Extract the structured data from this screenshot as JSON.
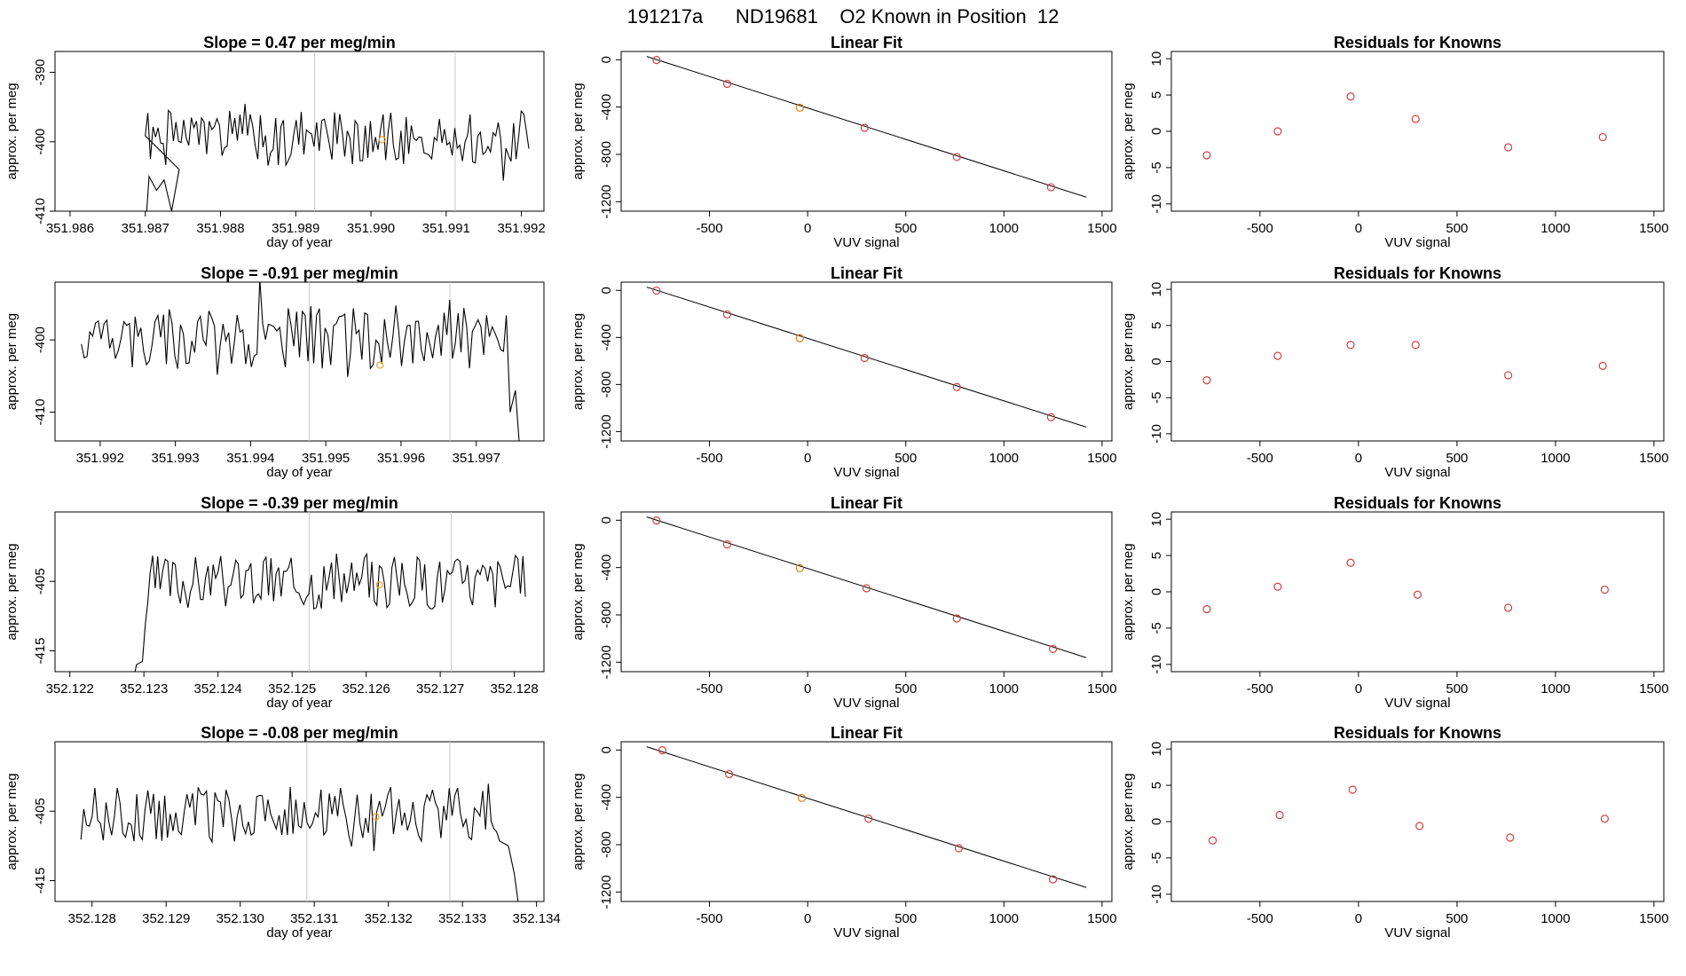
{
  "figure": {
    "title": "191217a      ND19681    O2 Known in Position  12"
  },
  "chart_data": [
    {
      "type": "line",
      "title": "Slope =  0.47  per meg/min",
      "xlabel": "day of year",
      "ylabel": "approx. per meg",
      "xlim": [
        351.9858,
        351.9923
      ],
      "ylim": [
        -410,
        -387
      ],
      "xticks": [
        351.986,
        351.987,
        351.988,
        351.989,
        351.99,
        351.991,
        351.992
      ],
      "xtick_labels": [
        "351.986",
        "351.987",
        "351.988",
        "351.989",
        "351.990",
        "351.991",
        "351.992"
      ],
      "yticks": [
        -410,
        -400,
        -390
      ],
      "ytick_labels": [
        "-410",
        "-400",
        "-390"
      ],
      "series": [
        {
          "x_start": 351.987,
          "x_end": 351.9921,
          "baseline": -399.5,
          "amplitude": 4,
          "seed": 1,
          "lead_in": [
            [
              351.987,
              -413
            ],
            [
              351.98705,
              -405
            ],
            [
              351.98715,
              -407
            ],
            [
              351.98725,
              -405.5
            ],
            [
              351.98735,
              -410
            ],
            [
              351.98745,
              -404
            ]
          ]
        }
      ],
      "vlines": [
        351.98925,
        351.99112
      ],
      "marker": {
        "x": 351.99015,
        "y": -399.7,
        "color": "#f0a030"
      },
      "grid": false
    },
    {
      "type": "scatter",
      "title": "Linear Fit",
      "xlabel": "VUV signal",
      "ylabel": "approx. per meg",
      "xlim": [
        -950,
        1550
      ],
      "ylim": [
        -1280,
        70
      ],
      "xticks": [
        -500,
        0,
        500,
        1000,
        1500
      ],
      "xtick_labels": [
        "-500",
        "0",
        "500",
        "1000",
        "1500"
      ],
      "yticks": [
        -1200,
        -800,
        -400,
        0
      ],
      "ytick_labels": [
        "-1200",
        "-800",
        "-400",
        "0"
      ],
      "fit_line": {
        "x": [
          -820,
          1420
        ],
        "y": [
          28,
          -1162
        ]
      },
      "points": [
        {
          "x": -770,
          "y": -2
        },
        {
          "x": -410,
          "y": -204
        },
        {
          "x": -40,
          "y": -405
        },
        {
          "x": 290,
          "y": -575
        },
        {
          "x": 760,
          "y": -822
        },
        {
          "x": 1240,
          "y": -1078
        }
      ],
      "point_colors": [
        "#d24040",
        "#d24040",
        "#e07818",
        "#d24040",
        "#d24040",
        "#d24040"
      ],
      "grid": false
    },
    {
      "type": "scatter",
      "title": "Residuals for Knowns",
      "xlabel": "VUV signal",
      "ylabel": "approx. per meg",
      "xlim": [
        -950,
        1550
      ],
      "ylim": [
        -11,
        11
      ],
      "xticks": [
        -500,
        0,
        500,
        1000,
        1500
      ],
      "xtick_labels": [
        "-500",
        "0",
        "500",
        "1000",
        "1500"
      ],
      "yticks": [
        -10,
        -5,
        0,
        5,
        10
      ],
      "ytick_labels": [
        "-10",
        "-5",
        "0",
        "5",
        "10"
      ],
      "points": [
        {
          "x": -770,
          "y": -3.3
        },
        {
          "x": -410,
          "y": 0.0
        },
        {
          "x": -40,
          "y": 4.8
        },
        {
          "x": 290,
          "y": 1.7
        },
        {
          "x": 760,
          "y": -2.2
        },
        {
          "x": 1240,
          "y": -0.8
        }
      ],
      "point_colors": [
        "#d24040",
        "#d24040",
        "#d24040",
        "#d24040",
        "#d24040",
        "#d24040"
      ],
      "grid": false
    },
    {
      "type": "line",
      "title": "Slope =  -0.91  per meg/min",
      "xlabel": "day of year",
      "ylabel": "approx. per meg",
      "xlim": [
        351.9914,
        351.9979
      ],
      "ylim": [
        -414,
        -392
      ],
      "xticks": [
        351.992,
        351.993,
        351.994,
        351.995,
        351.996,
        351.997
      ],
      "xtick_labels": [
        "351.992",
        "351.993",
        "351.994",
        "351.995",
        "351.996",
        "351.997"
      ],
      "yticks": [
        -410,
        -400
      ],
      "ytick_labels": [
        "-410",
        "-400"
      ],
      "series": [
        {
          "x_start": 351.99175,
          "x_end": 351.9974,
          "baseline": -399.5,
          "amplitude": 4.5,
          "seed": 2,
          "trail": [
            [
              351.99745,
              -410
            ],
            [
              351.99752,
              -407
            ],
            [
              351.99757,
              -414
            ]
          ]
        }
      ],
      "vlines": [
        351.99478,
        351.99665
      ],
      "marker": {
        "x": 351.99572,
        "y": -403.5,
        "color": "#f0a030"
      },
      "grid": false
    },
    {
      "type": "scatter",
      "title": "Linear Fit",
      "xlabel": "VUV signal",
      "ylabel": "approx. per meg",
      "xlim": [
        -950,
        1550
      ],
      "ylim": [
        -1280,
        70
      ],
      "xticks": [
        -500,
        0,
        500,
        1000,
        1500
      ],
      "xtick_labels": [
        "-500",
        "0",
        "500",
        "1000",
        "1500"
      ],
      "yticks": [
        -1200,
        -800,
        -400,
        0
      ],
      "ytick_labels": [
        "-1200",
        "-800",
        "-400",
        "0"
      ],
      "fit_line": {
        "x": [
          -820,
          1420
        ],
        "y": [
          28,
          -1162
        ]
      },
      "points": [
        {
          "x": -770,
          "y": -2
        },
        {
          "x": -410,
          "y": -204
        },
        {
          "x": -40,
          "y": -405
        },
        {
          "x": 290,
          "y": -575
        },
        {
          "x": 760,
          "y": -822
        },
        {
          "x": 1240,
          "y": -1078
        }
      ],
      "point_colors": [
        "#d24040",
        "#d24040",
        "#e07818",
        "#d24040",
        "#d24040",
        "#d24040"
      ],
      "grid": false
    },
    {
      "type": "scatter",
      "title": "Residuals for Knowns",
      "xlabel": "VUV signal",
      "ylabel": "approx. per meg",
      "xlim": [
        -950,
        1550
      ],
      "ylim": [
        -11,
        11
      ],
      "xticks": [
        -500,
        0,
        500,
        1000,
        1500
      ],
      "xtick_labels": [
        "-500",
        "0",
        "500",
        "1000",
        "1500"
      ],
      "yticks": [
        -10,
        -5,
        0,
        5,
        10
      ],
      "ytick_labels": [
        "-10",
        "-5",
        "0",
        "5",
        "10"
      ],
      "points": [
        {
          "x": -770,
          "y": -2.6
        },
        {
          "x": -410,
          "y": 0.8
        },
        {
          "x": -40,
          "y": 2.3
        },
        {
          "x": 290,
          "y": 2.3
        },
        {
          "x": 760,
          "y": -1.9
        },
        {
          "x": 1240,
          "y": -0.6
        }
      ],
      "point_colors": [
        "#d24040",
        "#d24040",
        "#d24040",
        "#d24040",
        "#d24040",
        "#d24040"
      ],
      "grid": false
    },
    {
      "type": "line",
      "title": "Slope =  -0.39  per meg/min",
      "xlabel": "day of year",
      "ylabel": "approx. per meg",
      "xlim": [
        352.1218,
        352.1284
      ],
      "ylim": [
        -418,
        -395
      ],
      "xticks": [
        352.122,
        352.123,
        352.124,
        352.125,
        352.126,
        352.127,
        352.128
      ],
      "xtick_labels": [
        "352.122",
        "352.123",
        "352.124",
        "352.125",
        "352.126",
        "352.127",
        "352.128"
      ],
      "yticks": [
        -415,
        -405
      ],
      "ytick_labels": [
        "-415",
        "-405"
      ],
      "series": [
        {
          "x_start": 352.12305,
          "x_end": 352.12815,
          "baseline": -405,
          "amplitude": 4,
          "seed": 3,
          "lead_in": [
            [
              352.12288,
              -418
            ],
            [
              352.1229,
              -417
            ],
            [
              352.12298,
              -416.5
            ],
            [
              352.12302,
              -411
            ]
          ]
        }
      ],
      "vlines": [
        352.12523,
        352.12715
      ],
      "marker": {
        "x": 352.12618,
        "y": -405.5,
        "color": "#f0a030"
      },
      "grid": false
    },
    {
      "type": "scatter",
      "title": "Linear Fit",
      "xlabel": "VUV signal",
      "ylabel": "approx. per meg",
      "xlim": [
        -950,
        1550
      ],
      "ylim": [
        -1280,
        70
      ],
      "xticks": [
        -500,
        0,
        500,
        1000,
        1500
      ],
      "xtick_labels": [
        "-500",
        "0",
        "500",
        "1000",
        "1500"
      ],
      "yticks": [
        -1200,
        -800,
        -400,
        0
      ],
      "ytick_labels": [
        "-1200",
        "-800",
        "-400",
        "0"
      ],
      "fit_line": {
        "x": [
          -820,
          1420
        ],
        "y": [
          28,
          -1162
        ]
      },
      "points": [
        {
          "x": -770,
          "y": -2
        },
        {
          "x": -410,
          "y": -204
        },
        {
          "x": -40,
          "y": -405
        },
        {
          "x": 300,
          "y": -575
        },
        {
          "x": 760,
          "y": -830
        },
        {
          "x": 1250,
          "y": -1088
        }
      ],
      "point_colors": [
        "#d24040",
        "#d24040",
        "#e07818",
        "#d24040",
        "#d24040",
        "#d24040"
      ],
      "grid": false
    },
    {
      "type": "scatter",
      "title": "Residuals for Knowns",
      "xlabel": "VUV signal",
      "ylabel": "approx. per meg",
      "xlim": [
        -950,
        1550
      ],
      "ylim": [
        -11,
        11
      ],
      "xticks": [
        -500,
        0,
        500,
        1000,
        1500
      ],
      "xtick_labels": [
        "-500",
        "0",
        "500",
        "1000",
        "1500"
      ],
      "yticks": [
        -10,
        -5,
        0,
        5,
        10
      ],
      "ytick_labels": [
        "-10",
        "-5",
        "0",
        "5",
        "10"
      ],
      "points": [
        {
          "x": -770,
          "y": -2.4
        },
        {
          "x": -410,
          "y": 0.7
        },
        {
          "x": -40,
          "y": 4.0
        },
        {
          "x": 300,
          "y": -0.4
        },
        {
          "x": 760,
          "y": -2.2
        },
        {
          "x": 1250,
          "y": 0.3
        }
      ],
      "point_colors": [
        "#d24040",
        "#d24040",
        "#d24040",
        "#d24040",
        "#d24040",
        "#d24040"
      ],
      "grid": false
    },
    {
      "type": "line",
      "title": "Slope =  -0.08  per meg/min",
      "xlabel": "day of year",
      "ylabel": "approx. per meg",
      "xlim": [
        352.1275,
        352.1341
      ],
      "ylim": [
        -418,
        -395
      ],
      "xticks": [
        352.128,
        352.129,
        352.13,
        352.131,
        352.132,
        352.133,
        352.134
      ],
      "xtick_labels": [
        "352.128",
        "352.129",
        "352.130",
        "352.131",
        "352.132",
        "352.133",
        "352.134"
      ],
      "yticks": [
        -415,
        -405
      ],
      "ytick_labels": [
        "-415",
        "-405"
      ],
      "series": [
        {
          "x_start": 352.12785,
          "x_end": 352.1335,
          "baseline": -405.5,
          "amplitude": 4,
          "seed": 4,
          "trail": [
            [
              352.13362,
              -410
            ],
            [
              352.1337,
              -414
            ],
            [
              352.13375,
              -418
            ]
          ]
        }
      ],
      "vlines": [
        352.1309,
        352.13283
      ],
      "marker": {
        "x": 352.13183,
        "y": -405.8,
        "color": "#f0a030"
      },
      "grid": false
    },
    {
      "type": "scatter",
      "title": "Linear Fit",
      "xlabel": "VUV signal",
      "ylabel": "approx. per meg",
      "xlim": [
        -950,
        1550
      ],
      "ylim": [
        -1280,
        70
      ],
      "xticks": [
        -500,
        0,
        500,
        1000,
        1500
      ],
      "xtick_labels": [
        "-500",
        "0",
        "500",
        "1000",
        "1500"
      ],
      "yticks": [
        -1200,
        -800,
        -400,
        0
      ],
      "ytick_labels": [
        "-1200",
        "-800",
        "-400",
        "0"
      ],
      "fit_line": {
        "x": [
          -820,
          1420
        ],
        "y": [
          28,
          -1162
        ]
      },
      "points": [
        {
          "x": -740,
          "y": -2
        },
        {
          "x": -400,
          "y": -204
        },
        {
          "x": -30,
          "y": -405
        },
        {
          "x": 310,
          "y": -580
        },
        {
          "x": 770,
          "y": -830
        },
        {
          "x": 1250,
          "y": -1093
        }
      ],
      "point_colors": [
        "#d24040",
        "#d24040",
        "#e07818",
        "#d24040",
        "#d24040",
        "#d24040"
      ],
      "grid": false
    },
    {
      "type": "scatter",
      "title": "Residuals for Knowns",
      "xlabel": "VUV signal",
      "ylabel": "approx. per meg",
      "xlim": [
        -950,
        1550
      ],
      "ylim": [
        -11,
        11
      ],
      "xticks": [
        -500,
        0,
        500,
        1000,
        1500
      ],
      "xtick_labels": [
        "-500",
        "0",
        "500",
        "1000",
        "1500"
      ],
      "yticks": [
        -10,
        -5,
        0,
        5,
        10
      ],
      "ytick_labels": [
        "-10",
        "-5",
        "0",
        "5",
        "10"
      ],
      "points": [
        {
          "x": -740,
          "y": -2.6
        },
        {
          "x": -400,
          "y": 0.9
        },
        {
          "x": -30,
          "y": 4.4
        },
        {
          "x": 310,
          "y": -0.6
        },
        {
          "x": 770,
          "y": -2.2
        },
        {
          "x": 1250,
          "y": 0.4
        }
      ],
      "point_colors": [
        "#d24040",
        "#d24040",
        "#d24040",
        "#d24040",
        "#d24040",
        "#d24040"
      ],
      "grid": false
    }
  ]
}
